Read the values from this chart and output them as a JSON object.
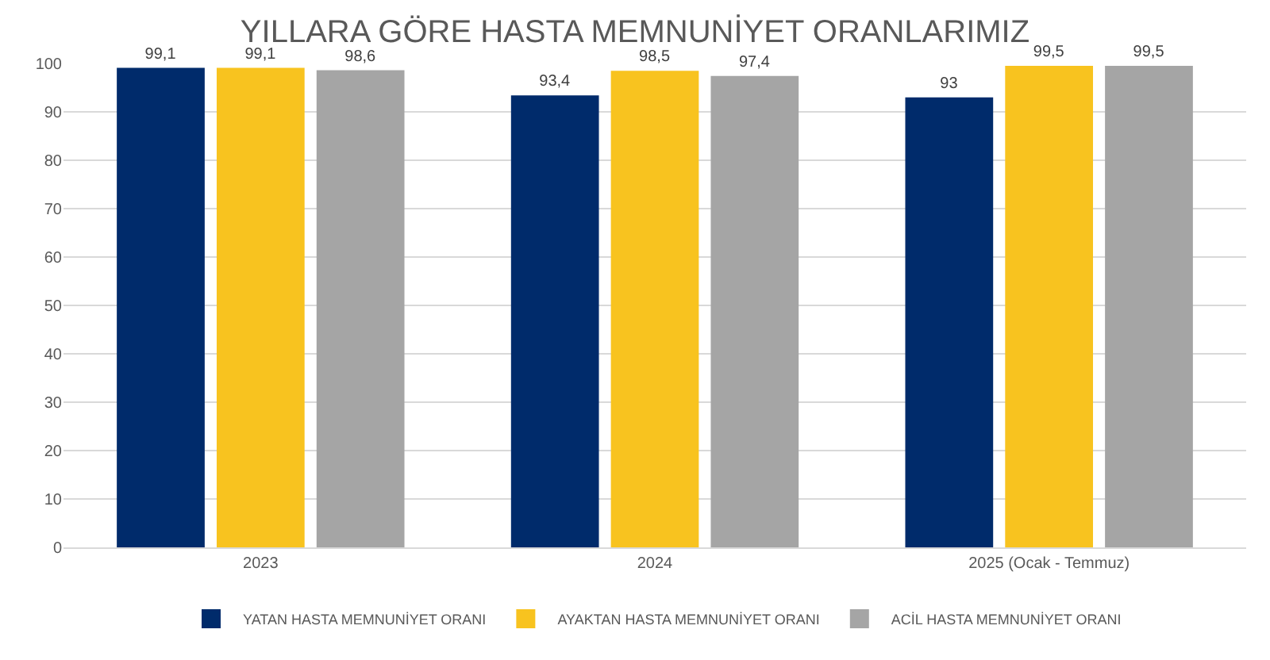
{
  "chart_data": {
    "type": "bar",
    "title": "YILLARA GÖRE HASTA MEMNUNİYET ORANLARIMIZ",
    "categories": [
      "2023",
      "2024",
      "2025 (Ocak - Temmuz)"
    ],
    "series": [
      {
        "name": "YATAN HASTA MEMNUNİYET ORANI",
        "color": "#002b6b",
        "values": [
          99.1,
          93.4,
          93
        ],
        "value_labels": [
          "99,1",
          "93,4",
          "93"
        ]
      },
      {
        "name": "AYAKTAN HASTA MEMNUNİYET ORANI",
        "color": "#f8c31f",
        "values": [
          99.1,
          98.5,
          99.5
        ],
        "value_labels": [
          "99,1",
          "98,5",
          "99,5"
        ]
      },
      {
        "name": "ACİL HASTA MEMNUNİYET ORANI",
        "color": "#a5a5a5",
        "values": [
          98.6,
          97.4,
          99.5
        ],
        "value_labels": [
          "98,6",
          "97,4",
          "99,5"
        ]
      }
    ],
    "ylim": [
      0,
      100
    ],
    "yticks": [
      0,
      10,
      20,
      30,
      40,
      50,
      60,
      70,
      80,
      90,
      100
    ],
    "grid": "y",
    "legend": "bottom"
  }
}
